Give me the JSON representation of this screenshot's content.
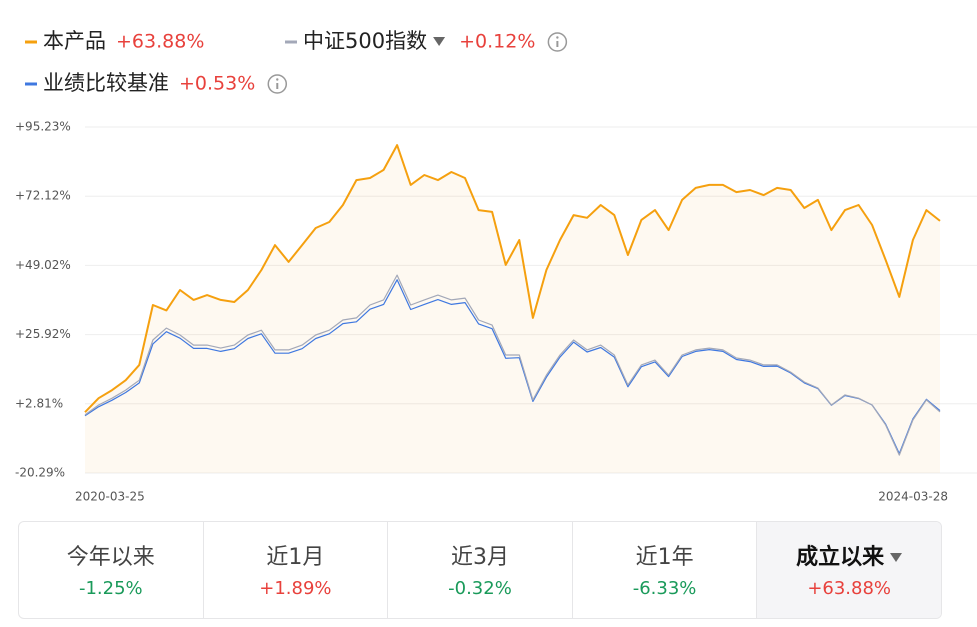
{
  "chart_data": {
    "type": "line",
    "categories": [
      "2020-03-25",
      null,
      null,
      null,
      null,
      null,
      null,
      null,
      null,
      null,
      null,
      null,
      null,
      null,
      null,
      null,
      null,
      null,
      null,
      null,
      null,
      null,
      null,
      null,
      null,
      null,
      null,
      null,
      null,
      null,
      null,
      null,
      null,
      null,
      null,
      null,
      null,
      null,
      null,
      null,
      null,
      null,
      null,
      null,
      null,
      null,
      null,
      null,
      null,
      null,
      null,
      null,
      null,
      null,
      null,
      null,
      null,
      null,
      null,
      null,
      null,
      null,
      null,
      "2024-03-28"
    ],
    "series": [
      {
        "name": "本产品",
        "color": "#f5a00f",
        "change": 63.88,
        "change_label": "+63.88%",
        "area": true,
        "values": [
          0,
          4.7,
          7.4,
          10.7,
          15.8,
          35.8,
          34,
          40.8,
          37.5,
          39.1,
          37.5,
          36.8,
          40.8,
          47.5,
          55.8,
          50.2,
          55.8,
          61.5,
          63.5,
          69.2,
          77.5,
          78.2,
          80.9,
          89.2,
          75.9,
          79.2,
          77.5,
          80.2,
          78.2,
          67.5,
          66.9,
          49.2,
          57.5,
          31.5,
          47.5,
          57.5,
          65.8,
          64.9,
          69.2,
          65.8,
          52.5,
          64.2,
          67.5,
          60.8,
          70.9,
          74.9,
          75.9,
          75.9,
          73.5,
          74.2,
          72.5,
          74.9,
          74.2,
          68.2,
          70.9,
          60.8,
          67.5,
          69.2,
          62.5,
          50.8,
          38.5,
          57.5,
          67.5,
          63.88
        ]
      },
      {
        "name": "中证500指数",
        "color": "#a3a8b8",
        "change": 0.12,
        "change_label": "+0.12%",
        "dropdown": true,
        "values": [
          -0.9,
          2.4,
          4.7,
          7.4,
          10.7,
          24.1,
          28.1,
          25.8,
          22.4,
          22.4,
          21.4,
          22.4,
          25.8,
          27.4,
          20.8,
          20.8,
          22.4,
          25.8,
          27.4,
          30.8,
          31.5,
          35.8,
          37.5,
          45.8,
          35.8,
          37.5,
          39.1,
          37.5,
          38.1,
          30.8,
          29.1,
          19.1,
          19.1,
          4.1,
          12.4,
          19.1,
          24.1,
          20.8,
          22.4,
          19.1,
          9.1,
          15.8,
          17.4,
          12.4,
          19.1,
          20.8,
          21.4,
          20.8,
          18.1,
          17.4,
          15.8,
          15.8,
          13.4,
          10.1,
          8.1,
          2.4,
          5.8,
          4.7,
          2.4,
          -4.3,
          -14.3,
          -2.6,
          4.1,
          0.12
        ]
      },
      {
        "name": "业绩比较基准",
        "color": "#3f78e0",
        "change": 0.53,
        "change_label": "+0.53%",
        "values": [
          -1.2,
          1.8,
          4.0,
          6.6,
          9.8,
          22.8,
          26.9,
          24.7,
          21.3,
          21.3,
          20.3,
          21.2,
          24.6,
          26.2,
          19.7,
          19.7,
          21.2,
          24.6,
          26.2,
          29.6,
          30.2,
          34.4,
          36.0,
          44.2,
          34.3,
          36.0,
          37.6,
          36.0,
          36.6,
          29.5,
          27.9,
          18.0,
          18.2,
          3.6,
          11.7,
          18.4,
          23.4,
          20.1,
          21.6,
          18.4,
          8.5,
          15.2,
          16.8,
          11.9,
          18.6,
          20.3,
          20.9,
          20.3,
          17.6,
          16.9,
          15.3,
          15.4,
          13.1,
          9.8,
          7.9,
          2.3,
          5.6,
          4.6,
          2.4,
          -4.0,
          -13.8,
          -2.2,
          4.3,
          0.53
        ]
      }
    ],
    "ylim": [
      -20.29,
      95.23
    ],
    "yticks": [
      {
        "value": -20.29,
        "label": "-20.29%"
      },
      {
        "value": 2.81,
        "label": "+2.81%"
      },
      {
        "value": 25.92,
        "label": "+25.92%"
      },
      {
        "value": 49.02,
        "label": "+49.02%"
      },
      {
        "value": 72.12,
        "label": "+72.12%"
      },
      {
        "value": 95.23,
        "label": "+95.23%"
      }
    ],
    "grid": true
  },
  "periods": [
    {
      "name": "今年以来",
      "value": -1.25,
      "label": "-1.25%"
    },
    {
      "name": "近1月",
      "value": 1.89,
      "label": "+1.89%"
    },
    {
      "name": "近3月",
      "value": -0.32,
      "label": "-0.32%"
    },
    {
      "name": "近1年",
      "value": -6.33,
      "label": "-6.33%"
    },
    {
      "name": "成立以来",
      "value": 63.88,
      "label": "+63.88%",
      "selected": true,
      "dropdown": true
    }
  ]
}
